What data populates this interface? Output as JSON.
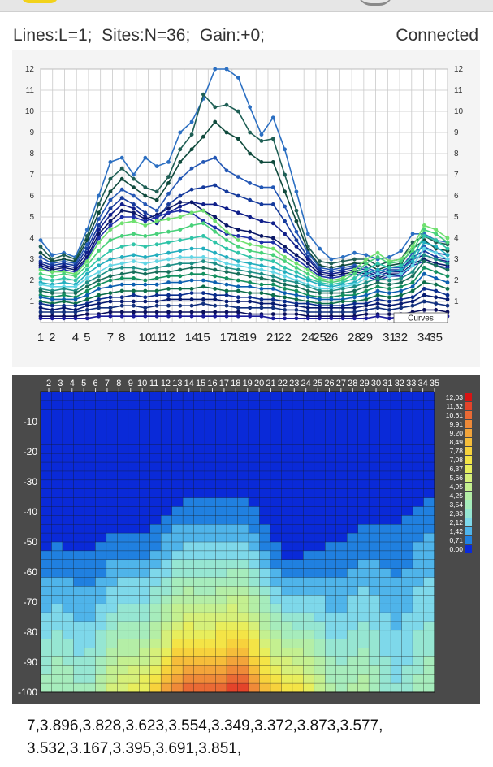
{
  "status": {
    "lines": "Lines:L=1;",
    "sites": "Sites:N=36;",
    "gain": "Gain:+0;",
    "connection": "Connected"
  },
  "line_chart": {
    "type": "line",
    "ylim": [
      0,
      12
    ],
    "y_ticks": [
      "1",
      "2",
      "3",
      "4",
      "5",
      "6",
      "7",
      "8",
      "9",
      "10",
      "11",
      "12"
    ],
    "x_ticks": [
      "1",
      "2",
      "4",
      "5",
      "7",
      "8",
      "10",
      "11",
      "12",
      "14",
      "15",
      "17",
      "18",
      "19",
      "21",
      "22",
      "24",
      "25",
      "26",
      "28",
      "29",
      "31",
      "32",
      "34",
      "35"
    ],
    "legend_label": "Curves",
    "x": [
      1,
      2,
      3,
      4,
      5,
      6,
      7,
      8,
      9,
      10,
      11,
      12,
      13,
      14,
      15,
      16,
      17,
      18,
      19,
      20,
      21,
      22,
      23,
      24,
      25,
      26,
      27,
      28,
      29,
      30,
      31,
      32,
      33,
      34,
      35,
      36
    ],
    "series": [
      {
        "color": "#2b6fc2",
        "values": [
          3.9,
          3.2,
          3.3,
          3.1,
          4.4,
          6.0,
          7.6,
          7.8,
          7.0,
          7.8,
          7.4,
          7.6,
          9.0,
          9.5,
          10.6,
          12.0,
          12.0,
          11.6,
          10.2,
          8.9,
          9.7,
          8.2,
          6.2,
          4.2,
          3.5,
          3.0,
          3.1,
          3.3,
          3.2,
          3.0,
          3.1,
          3.4,
          4.2,
          4.2,
          3.9,
          3.8
        ]
      },
      {
        "color": "#1f5f55",
        "values": [
          3.6,
          3.0,
          3.2,
          3.0,
          4.1,
          5.6,
          6.8,
          7.3,
          6.8,
          6.4,
          6.2,
          6.9,
          8.2,
          8.9,
          10.8,
          10.2,
          10.3,
          10.0,
          9.0,
          8.6,
          8.7,
          7.0,
          5.3,
          3.6,
          2.9,
          2.8,
          2.9,
          3.0,
          3.0,
          2.7,
          2.9,
          3.0,
          3.8,
          4.1,
          3.8,
          3.7
        ]
      },
      {
        "color": "#0f4a3c",
        "values": [
          3.3,
          2.9,
          3.0,
          2.9,
          3.9,
          5.2,
          6.2,
          6.8,
          6.4,
          6.0,
          5.8,
          6.6,
          7.6,
          8.2,
          8.8,
          9.5,
          9.0,
          8.7,
          8.0,
          7.6,
          7.6,
          6.2,
          4.8,
          3.4,
          2.7,
          2.6,
          2.7,
          2.8,
          2.8,
          2.5,
          2.7,
          2.8,
          3.5,
          3.9,
          3.5,
          3.4
        ]
      },
      {
        "color": "#2357b5",
        "values": [
          3.1,
          2.8,
          2.9,
          2.8,
          3.7,
          4.9,
          5.8,
          6.3,
          6.0,
          5.6,
          5.3,
          6.1,
          6.8,
          7.3,
          7.6,
          7.8,
          7.2,
          6.9,
          6.6,
          6.4,
          6.4,
          5.5,
          4.3,
          3.3,
          2.6,
          2.5,
          2.6,
          2.7,
          2.6,
          2.4,
          2.6,
          2.6,
          3.3,
          3.6,
          3.3,
          3.2
        ]
      },
      {
        "color": "#153a9c",
        "values": [
          2.9,
          2.7,
          2.8,
          2.7,
          3.5,
          4.6,
          5.4,
          5.9,
          5.6,
          5.2,
          4.9,
          5.6,
          6.0,
          6.3,
          6.4,
          6.5,
          6.2,
          6.0,
          5.8,
          5.6,
          5.6,
          4.8,
          3.9,
          3.1,
          2.5,
          2.4,
          2.5,
          2.6,
          2.5,
          2.3,
          2.5,
          2.5,
          3.1,
          3.4,
          3.1,
          3.0
        ]
      },
      {
        "color": "#101f8a",
        "values": [
          2.8,
          2.6,
          2.7,
          2.6,
          3.3,
          4.4,
          5.1,
          5.6,
          5.4,
          5.0,
          4.7,
          5.2,
          5.5,
          5.7,
          5.6,
          5.6,
          5.4,
          5.2,
          5.0,
          4.8,
          4.7,
          4.2,
          3.6,
          3.0,
          2.4,
          2.3,
          2.4,
          2.5,
          2.4,
          2.2,
          2.4,
          2.4,
          3.0,
          3.2,
          3.0,
          2.9
        ]
      },
      {
        "color": "#0a1766",
        "values": [
          2.7,
          2.5,
          2.6,
          2.5,
          3.1,
          4.2,
          4.8,
          5.3,
          5.2,
          4.9,
          5.1,
          5.4,
          5.7,
          5.7,
          5.3,
          5.0,
          4.6,
          4.4,
          4.3,
          4.1,
          4.0,
          3.6,
          3.2,
          2.8,
          2.3,
          2.2,
          2.3,
          2.4,
          2.3,
          2.1,
          2.3,
          2.3,
          2.8,
          3.0,
          2.8,
          2.7
        ]
      },
      {
        "color": "#1d2fa8",
        "values": [
          2.6,
          2.4,
          2.5,
          2.4,
          3.0,
          4.0,
          4.6,
          5.0,
          5.0,
          4.8,
          5.0,
          5.2,
          5.3,
          5.2,
          4.8,
          4.5,
          4.2,
          4.1,
          4.0,
          3.8,
          3.8,
          3.4,
          3.0,
          2.6,
          2.2,
          2.1,
          2.2,
          2.3,
          2.2,
          2.0,
          2.2,
          2.2,
          2.7,
          2.9,
          2.7,
          2.6
        ]
      },
      {
        "color": "#6ee06e",
        "values": [
          2.5,
          2.4,
          2.4,
          2.3,
          2.9,
          3.8,
          4.4,
          4.7,
          4.8,
          4.6,
          4.8,
          4.9,
          5.0,
          5.2,
          5.3,
          4.8,
          4.3,
          3.9,
          3.7,
          3.6,
          3.5,
          3.1,
          2.8,
          2.5,
          2.1,
          2.0,
          2.1,
          2.5,
          3.0,
          3.3,
          2.9,
          3.0,
          3.6,
          4.6,
          4.4,
          4.0
        ]
      },
      {
        "color": "#48d17a",
        "values": [
          2.3,
          2.2,
          2.3,
          2.2,
          2.7,
          3.4,
          3.9,
          4.1,
          4.2,
          4.1,
          4.2,
          4.3,
          4.4,
          4.6,
          4.7,
          4.3,
          3.9,
          3.6,
          3.4,
          3.3,
          3.2,
          2.9,
          2.6,
          2.3,
          2.0,
          1.9,
          2.0,
          2.3,
          2.8,
          3.1,
          2.8,
          2.9,
          3.4,
          4.4,
          4.2,
          3.8
        ]
      },
      {
        "color": "#2fc4a8",
        "values": [
          2.1,
          2.0,
          2.1,
          2.0,
          2.5,
          3.0,
          3.4,
          3.6,
          3.7,
          3.6,
          3.7,
          3.8,
          3.9,
          4.0,
          4.1,
          3.8,
          3.5,
          3.3,
          3.1,
          3.0,
          2.9,
          2.6,
          2.4,
          2.1,
          1.9,
          1.8,
          1.9,
          2.1,
          2.5,
          2.8,
          2.6,
          2.7,
          3.1,
          4.1,
          3.9,
          3.5
        ]
      },
      {
        "color": "#22aebe",
        "values": [
          1.9,
          1.8,
          1.9,
          1.8,
          2.3,
          2.7,
          3.0,
          3.1,
          3.2,
          3.1,
          3.2,
          3.3,
          3.4,
          3.5,
          3.5,
          3.3,
          3.1,
          2.9,
          2.8,
          2.7,
          2.6,
          2.4,
          2.2,
          2.0,
          1.8,
          1.7,
          1.8,
          1.9,
          2.3,
          2.5,
          2.4,
          2.5,
          2.9,
          3.8,
          3.6,
          3.2
        ]
      },
      {
        "color": "#63d6e6",
        "values": [
          1.8,
          1.7,
          1.7,
          1.7,
          2.1,
          2.4,
          2.7,
          2.8,
          2.9,
          2.8,
          2.9,
          3.0,
          3.1,
          3.1,
          3.1,
          3.0,
          2.8,
          2.7,
          2.6,
          2.5,
          2.4,
          2.2,
          2.0,
          1.8,
          1.6,
          1.6,
          1.7,
          1.8,
          2.1,
          2.3,
          2.2,
          2.3,
          2.7,
          3.5,
          3.3,
          3.0
        ]
      },
      {
        "color": "#1c8f86",
        "values": [
          1.6,
          1.5,
          1.6,
          1.5,
          1.9,
          2.2,
          2.5,
          2.6,
          2.6,
          2.5,
          2.6,
          2.7,
          2.8,
          2.8,
          2.9,
          2.8,
          2.6,
          2.5,
          2.4,
          2.3,
          2.2,
          2.0,
          1.9,
          1.7,
          1.5,
          1.5,
          1.6,
          1.7,
          1.9,
          2.1,
          2.0,
          2.1,
          2.4,
          3.2,
          3.0,
          2.8
        ]
      },
      {
        "color": "#166e5a",
        "values": [
          1.5,
          1.4,
          1.4,
          1.4,
          1.7,
          2.0,
          2.2,
          2.3,
          2.4,
          2.3,
          2.4,
          2.4,
          2.5,
          2.6,
          2.6,
          2.5,
          2.4,
          2.3,
          2.2,
          2.1,
          2.0,
          1.8,
          1.7,
          1.5,
          1.4,
          1.4,
          1.4,
          1.5,
          1.7,
          1.9,
          1.8,
          1.9,
          2.2,
          2.9,
          2.7,
          2.5
        ]
      },
      {
        "color": "#128f5e",
        "values": [
          1.3,
          1.2,
          1.3,
          1.2,
          1.5,
          1.8,
          2.0,
          2.1,
          2.1,
          2.0,
          2.1,
          2.2,
          2.2,
          2.3,
          2.3,
          2.2,
          2.1,
          2.0,
          1.9,
          1.8,
          1.8,
          1.6,
          1.5,
          1.3,
          1.2,
          1.2,
          1.3,
          1.3,
          1.5,
          1.7,
          1.6,
          1.7,
          1.9,
          2.6,
          2.4,
          2.2
        ]
      },
      {
        "color": "#0b5fb0",
        "values": [
          1.2,
          1.1,
          1.1,
          1.1,
          1.3,
          1.6,
          1.7,
          1.8,
          1.8,
          1.8,
          1.8,
          1.9,
          1.9,
          2.0,
          2.0,
          1.9,
          1.8,
          1.7,
          1.7,
          1.6,
          1.6,
          1.4,
          1.3,
          1.2,
          1.1,
          1.1,
          1.1,
          1.2,
          1.3,
          1.5,
          1.4,
          1.5,
          1.7,
          2.3,
          2.1,
          1.9
        ]
      },
      {
        "color": "#0b6e4a",
        "values": [
          1.0,
          0.9,
          1.0,
          0.9,
          1.1,
          1.3,
          1.4,
          1.5,
          1.5,
          1.5,
          1.5,
          1.6,
          1.6,
          1.6,
          1.7,
          1.6,
          1.5,
          1.5,
          1.4,
          1.4,
          1.3,
          1.2,
          1.1,
          1.0,
          0.9,
          0.9,
          1.0,
          1.0,
          1.1,
          1.3,
          1.2,
          1.3,
          1.5,
          1.9,
          1.8,
          1.6
        ]
      },
      {
        "color": "#0a2d8c",
        "values": [
          0.9,
          0.8,
          0.8,
          0.8,
          0.9,
          1.1,
          1.2,
          1.2,
          1.3,
          1.2,
          1.3,
          1.3,
          1.3,
          1.4,
          1.4,
          1.3,
          1.3,
          1.2,
          1.2,
          1.1,
          1.1,
          1.0,
          0.9,
          0.9,
          0.8,
          0.8,
          0.8,
          0.9,
          0.9,
          1.1,
          1.0,
          1.1,
          1.2,
          1.6,
          1.5,
          1.3
        ]
      },
      {
        "color": "#061a70",
        "values": [
          0.7,
          0.6,
          0.7,
          0.6,
          0.8,
          0.9,
          1.0,
          1.0,
          1.0,
          1.0,
          1.0,
          1.1,
          1.1,
          1.1,
          1.1,
          1.1,
          1.0,
          1.0,
          1.0,
          0.9,
          0.9,
          0.8,
          0.8,
          0.7,
          0.7,
          0.7,
          0.7,
          0.7,
          0.8,
          0.9,
          0.8,
          0.9,
          1.0,
          1.3,
          1.2,
          1.1
        ]
      },
      {
        "color": "#12307e",
        "values": [
          0.5,
          0.5,
          0.5,
          0.5,
          0.6,
          0.7,
          0.7,
          0.8,
          0.8,
          0.7,
          0.8,
          0.8,
          0.8,
          0.8,
          0.9,
          0.8,
          0.8,
          0.7,
          0.7,
          0.7,
          0.7,
          0.6,
          0.6,
          0.5,
          0.5,
          0.5,
          0.5,
          0.5,
          0.6,
          0.7,
          0.6,
          0.7,
          0.8,
          1.0,
          0.9,
          0.8
        ]
      },
      {
        "color": "#0a0f5c",
        "values": [
          0.3,
          0.3,
          0.3,
          0.3,
          0.4,
          0.4,
          0.5,
          0.5,
          0.5,
          0.5,
          0.5,
          0.5,
          0.5,
          0.5,
          0.5,
          0.5,
          0.5,
          0.5,
          0.4,
          0.4,
          0.4,
          0.4,
          0.4,
          0.3,
          0.3,
          0.3,
          0.3,
          0.3,
          0.4,
          0.4,
          0.4,
          0.4,
          0.5,
          0.6,
          0.6,
          0.5
        ]
      },
      {
        "color": "#1a1a9a",
        "values": [
          0.2,
          0.2,
          0.2,
          0.2,
          0.2,
          0.3,
          0.3,
          0.3,
          0.3,
          0.3,
          0.3,
          0.3,
          0.3,
          0.3,
          0.3,
          0.3,
          0.3,
          0.3,
          0.3,
          0.3,
          0.2,
          0.2,
          0.2,
          0.2,
          0.2,
          0.2,
          0.2,
          0.2,
          0.2,
          0.3,
          0.2,
          0.3,
          0.3,
          0.4,
          0.3,
          0.3
        ]
      }
    ]
  },
  "contour_chart": {
    "type": "heatmap",
    "x_ticks": [
      "2",
      "3",
      "4",
      "5",
      "6",
      "7",
      "8",
      "9",
      "10",
      "11",
      "12",
      "13",
      "14",
      "15",
      "16",
      "17",
      "18",
      "19",
      "20",
      "21",
      "22",
      "23",
      "24",
      "25",
      "26",
      "27",
      "28",
      "29",
      "30",
      "31",
      "32",
      "33",
      "34",
      "35"
    ],
    "y_ticks": [
      "-10",
      "-20",
      "-30",
      "-40",
      "-50",
      "-60",
      "-70",
      "-80",
      "-90",
      "-100"
    ],
    "ylim": [
      -100,
      0
    ],
    "legend_values": [
      "12,03",
      "11,32",
      "10,61",
      "9,91",
      "9,20",
      "8,49",
      "7,78",
      "7,08",
      "6,37",
      "5,66",
      "4,95",
      "4,25",
      "3,54",
      "2,83",
      "2,12",
      "1,42",
      "0,71",
      "0,00"
    ],
    "legend_colors": [
      "#d81414",
      "#e4442a",
      "#ea6a34",
      "#ef8a38",
      "#f3a43a",
      "#f6bd3a",
      "#f7d23c",
      "#f4e446",
      "#e8ee5c",
      "#d6f07a",
      "#c4f090",
      "#b4eea6",
      "#a6ecbc",
      "#96e6d2",
      "#7ed8ea",
      "#4fb4ea",
      "#2080e0",
      "#0a2ad8"
    ]
  },
  "data_text": "7,3.896,3.828,3.623,3.554,3.349,3.372,3.873,3.577,\n3.532,3.167,3.395,3.691,3.851,"
}
